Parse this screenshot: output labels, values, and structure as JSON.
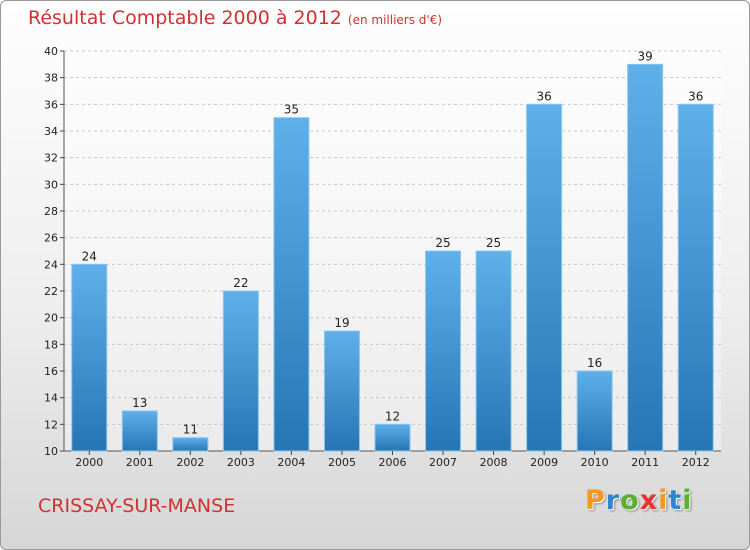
{
  "chart_data": {
    "type": "bar",
    "title": "Résultat Comptable 2000 à 2012",
    "unit_note": "(en milliers d'€)",
    "categories": [
      "2000",
      "2001",
      "2002",
      "2003",
      "2004",
      "2005",
      "2006",
      "2007",
      "2008",
      "2009",
      "2010",
      "2011",
      "2012"
    ],
    "values": [
      24,
      13,
      11,
      22,
      35,
      19,
      12,
      25,
      25,
      36,
      16,
      39,
      36
    ],
    "ylim": [
      10,
      40
    ],
    "yticks": [
      10,
      12,
      14,
      16,
      18,
      20,
      22,
      24,
      26,
      28,
      30,
      32,
      34,
      36,
      38,
      40
    ],
    "xlabel": "",
    "ylabel": "",
    "grid": true,
    "bar_color_light": "#5eb0ea",
    "bar_color_dark": "#2676b5"
  },
  "footer": {
    "commune": "CRISSAY-SUR-MANSE",
    "logo_letters": [
      "P",
      "r",
      "o",
      "x",
      "i",
      "t",
      "i"
    ],
    "logo_colors": [
      "#f29a1f",
      "#2f86cf",
      "#5bb033",
      "#e8322e",
      "#f29a1f",
      "#2f86cf",
      "#5bb033"
    ]
  }
}
